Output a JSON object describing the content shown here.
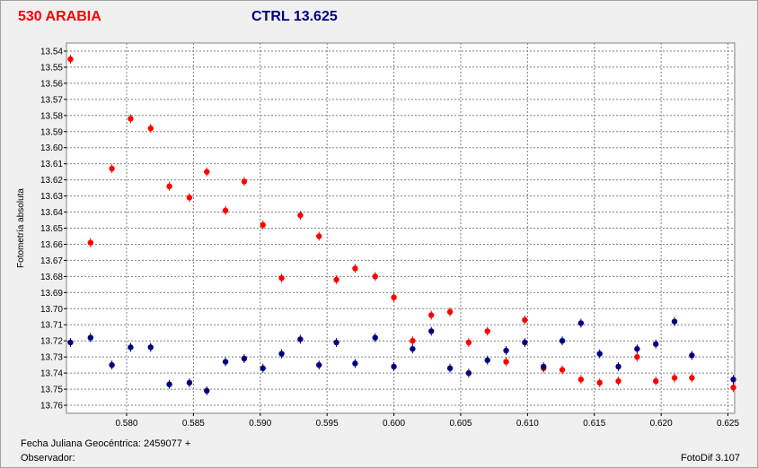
{
  "header": {
    "title_left": "530 ARABIA",
    "title_right": "CTRL 13.625"
  },
  "footer": {
    "fecha_label": "Fecha Juliana Geocéntrica:",
    "fecha_value": "2459077 +",
    "observador_label": "Observador:",
    "software": "FotoDif 3.107"
  },
  "colors": {
    "variable": "#ff0000",
    "control": "#000080",
    "grid": "#808080",
    "plot_bg": "#ffffff"
  },
  "chart_data": {
    "type": "scatter",
    "title": "530 ARABIA",
    "subtitle": "CTRL 13.625",
    "xlabel": "Fecha Juliana Geocéntrica: 2459077 +",
    "ylabel": "Fotometría absoluta",
    "xlim": [
      0.5755,
      0.6255
    ],
    "ylim": [
      13.535,
      13.765
    ],
    "y_inverted": true,
    "grid": true,
    "x_ticks": [
      "0.580",
      "0.585",
      "0.590",
      "0.595",
      "0.600",
      "0.605",
      "0.610",
      "0.615",
      "0.620",
      "0.625"
    ],
    "y_ticks": [
      "13.54",
      "13.55",
      "13.56",
      "13.57",
      "13.58",
      "13.59",
      "13.60",
      "13.61",
      "13.62",
      "13.63",
      "13.64",
      "13.65",
      "13.66",
      "13.67",
      "13.68",
      "13.69",
      "13.70",
      "13.71",
      "13.72",
      "13.73",
      "13.74",
      "13.75",
      "13.76"
    ],
    "series": [
      {
        "color": "#ff0000",
        "x": [
          0.5758,
          0.5773,
          0.5789,
          0.5803,
          0.5818,
          0.5832,
          0.5847,
          0.586,
          0.5874,
          0.5888,
          0.5902,
          0.5916,
          0.593,
          0.5944,
          0.5957,
          0.5971,
          0.5986,
          0.6,
          0.6014,
          0.6028,
          0.6042,
          0.6056,
          0.607,
          0.6084,
          0.6098,
          0.6112,
          0.6126,
          0.614,
          0.6154,
          0.6168,
          0.6182,
          0.6196,
          0.621,
          0.6223,
          0.6254
        ],
        "y": [
          13.545,
          13.659,
          13.613,
          13.582,
          13.588,
          13.624,
          13.631,
          13.615,
          13.639,
          13.621,
          13.648,
          13.681,
          13.642,
          13.655,
          13.682,
          13.675,
          13.68,
          13.693,
          13.72,
          13.704,
          13.702,
          13.721,
          13.714,
          13.733,
          13.707,
          13.737,
          13.738,
          13.744,
          13.746,
          13.745,
          13.73,
          13.745,
          13.743,
          13.743,
          13.749
        ]
      },
      {
        "color": "#000080",
        "x": [
          0.5758,
          0.5773,
          0.5789,
          0.5803,
          0.5818,
          0.5832,
          0.5847,
          0.586,
          0.5874,
          0.5888,
          0.5902,
          0.5916,
          0.593,
          0.5944,
          0.5957,
          0.5971,
          0.5986,
          0.6,
          0.6014,
          0.6028,
          0.6042,
          0.6056,
          0.607,
          0.6084,
          0.6098,
          0.6112,
          0.6126,
          0.614,
          0.6154,
          0.6168,
          0.6182,
          0.6196,
          0.621,
          0.6223,
          0.6254
        ],
        "y": [
          13.721,
          13.718,
          13.735,
          13.724,
          13.724,
          13.747,
          13.746,
          13.751,
          13.733,
          13.731,
          13.737,
          13.728,
          13.719,
          13.735,
          13.721,
          13.734,
          13.718,
          13.736,
          13.725,
          13.714,
          13.737,
          13.74,
          13.732,
          13.726,
          13.721,
          13.736,
          13.72,
          13.709,
          13.728,
          13.736,
          13.725,
          13.722,
          13.708,
          13.729,
          13.744
        ]
      }
    ]
  }
}
